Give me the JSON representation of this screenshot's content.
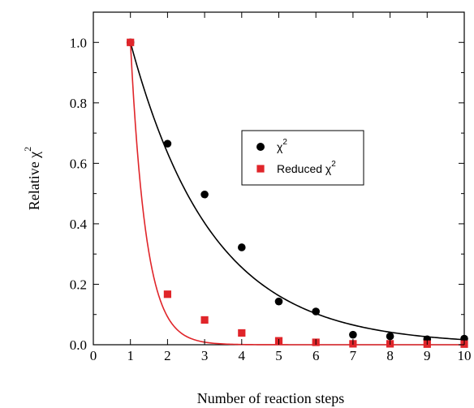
{
  "chart_data": {
    "type": "scatter",
    "title": "",
    "xlabel": "Number of reaction steps",
    "ylabel_text": "Relative χ",
    "ylabel_sup": "2",
    "xlim": [
      0,
      10
    ],
    "ylim": [
      0,
      1.1
    ],
    "xticks": [
      0,
      1,
      2,
      3,
      4,
      5,
      6,
      7,
      8,
      9,
      10
    ],
    "yticks": [
      0.0,
      0.2,
      0.4,
      0.6,
      0.8,
      1.0
    ],
    "ytick_labels": [
      "0.0",
      "0.2",
      "0.4",
      "0.6",
      "0.8",
      "1.0"
    ],
    "grid": false,
    "legend_position": "center-right",
    "series": [
      {
        "label_text": "χ",
        "label_sup": "2",
        "marker": "circle",
        "color": "#000000",
        "x": [
          1,
          2,
          3,
          4,
          5,
          6,
          7,
          8,
          9,
          10
        ],
        "y": [
          1.0,
          0.665,
          0.497,
          0.322,
          0.143,
          0.11,
          0.033,
          0.028,
          0.018,
          0.02
        ],
        "fit": {
          "x0": 1,
          "tau": 2.2,
          "amplitude": 1.0
        }
      },
      {
        "label_text": "Reduced χ",
        "label_sup": "2",
        "marker": "square",
        "color": "#e0252a",
        "x": [
          1,
          2,
          3,
          4,
          5,
          6,
          7,
          8,
          9,
          10
        ],
        "y": [
          1.0,
          0.167,
          0.082,
          0.039,
          0.013,
          0.008,
          0.003,
          0.003,
          0.002,
          0.002
        ],
        "fit": {
          "x0": 1,
          "tau": 0.42,
          "amplitude": 1.0
        }
      }
    ]
  }
}
